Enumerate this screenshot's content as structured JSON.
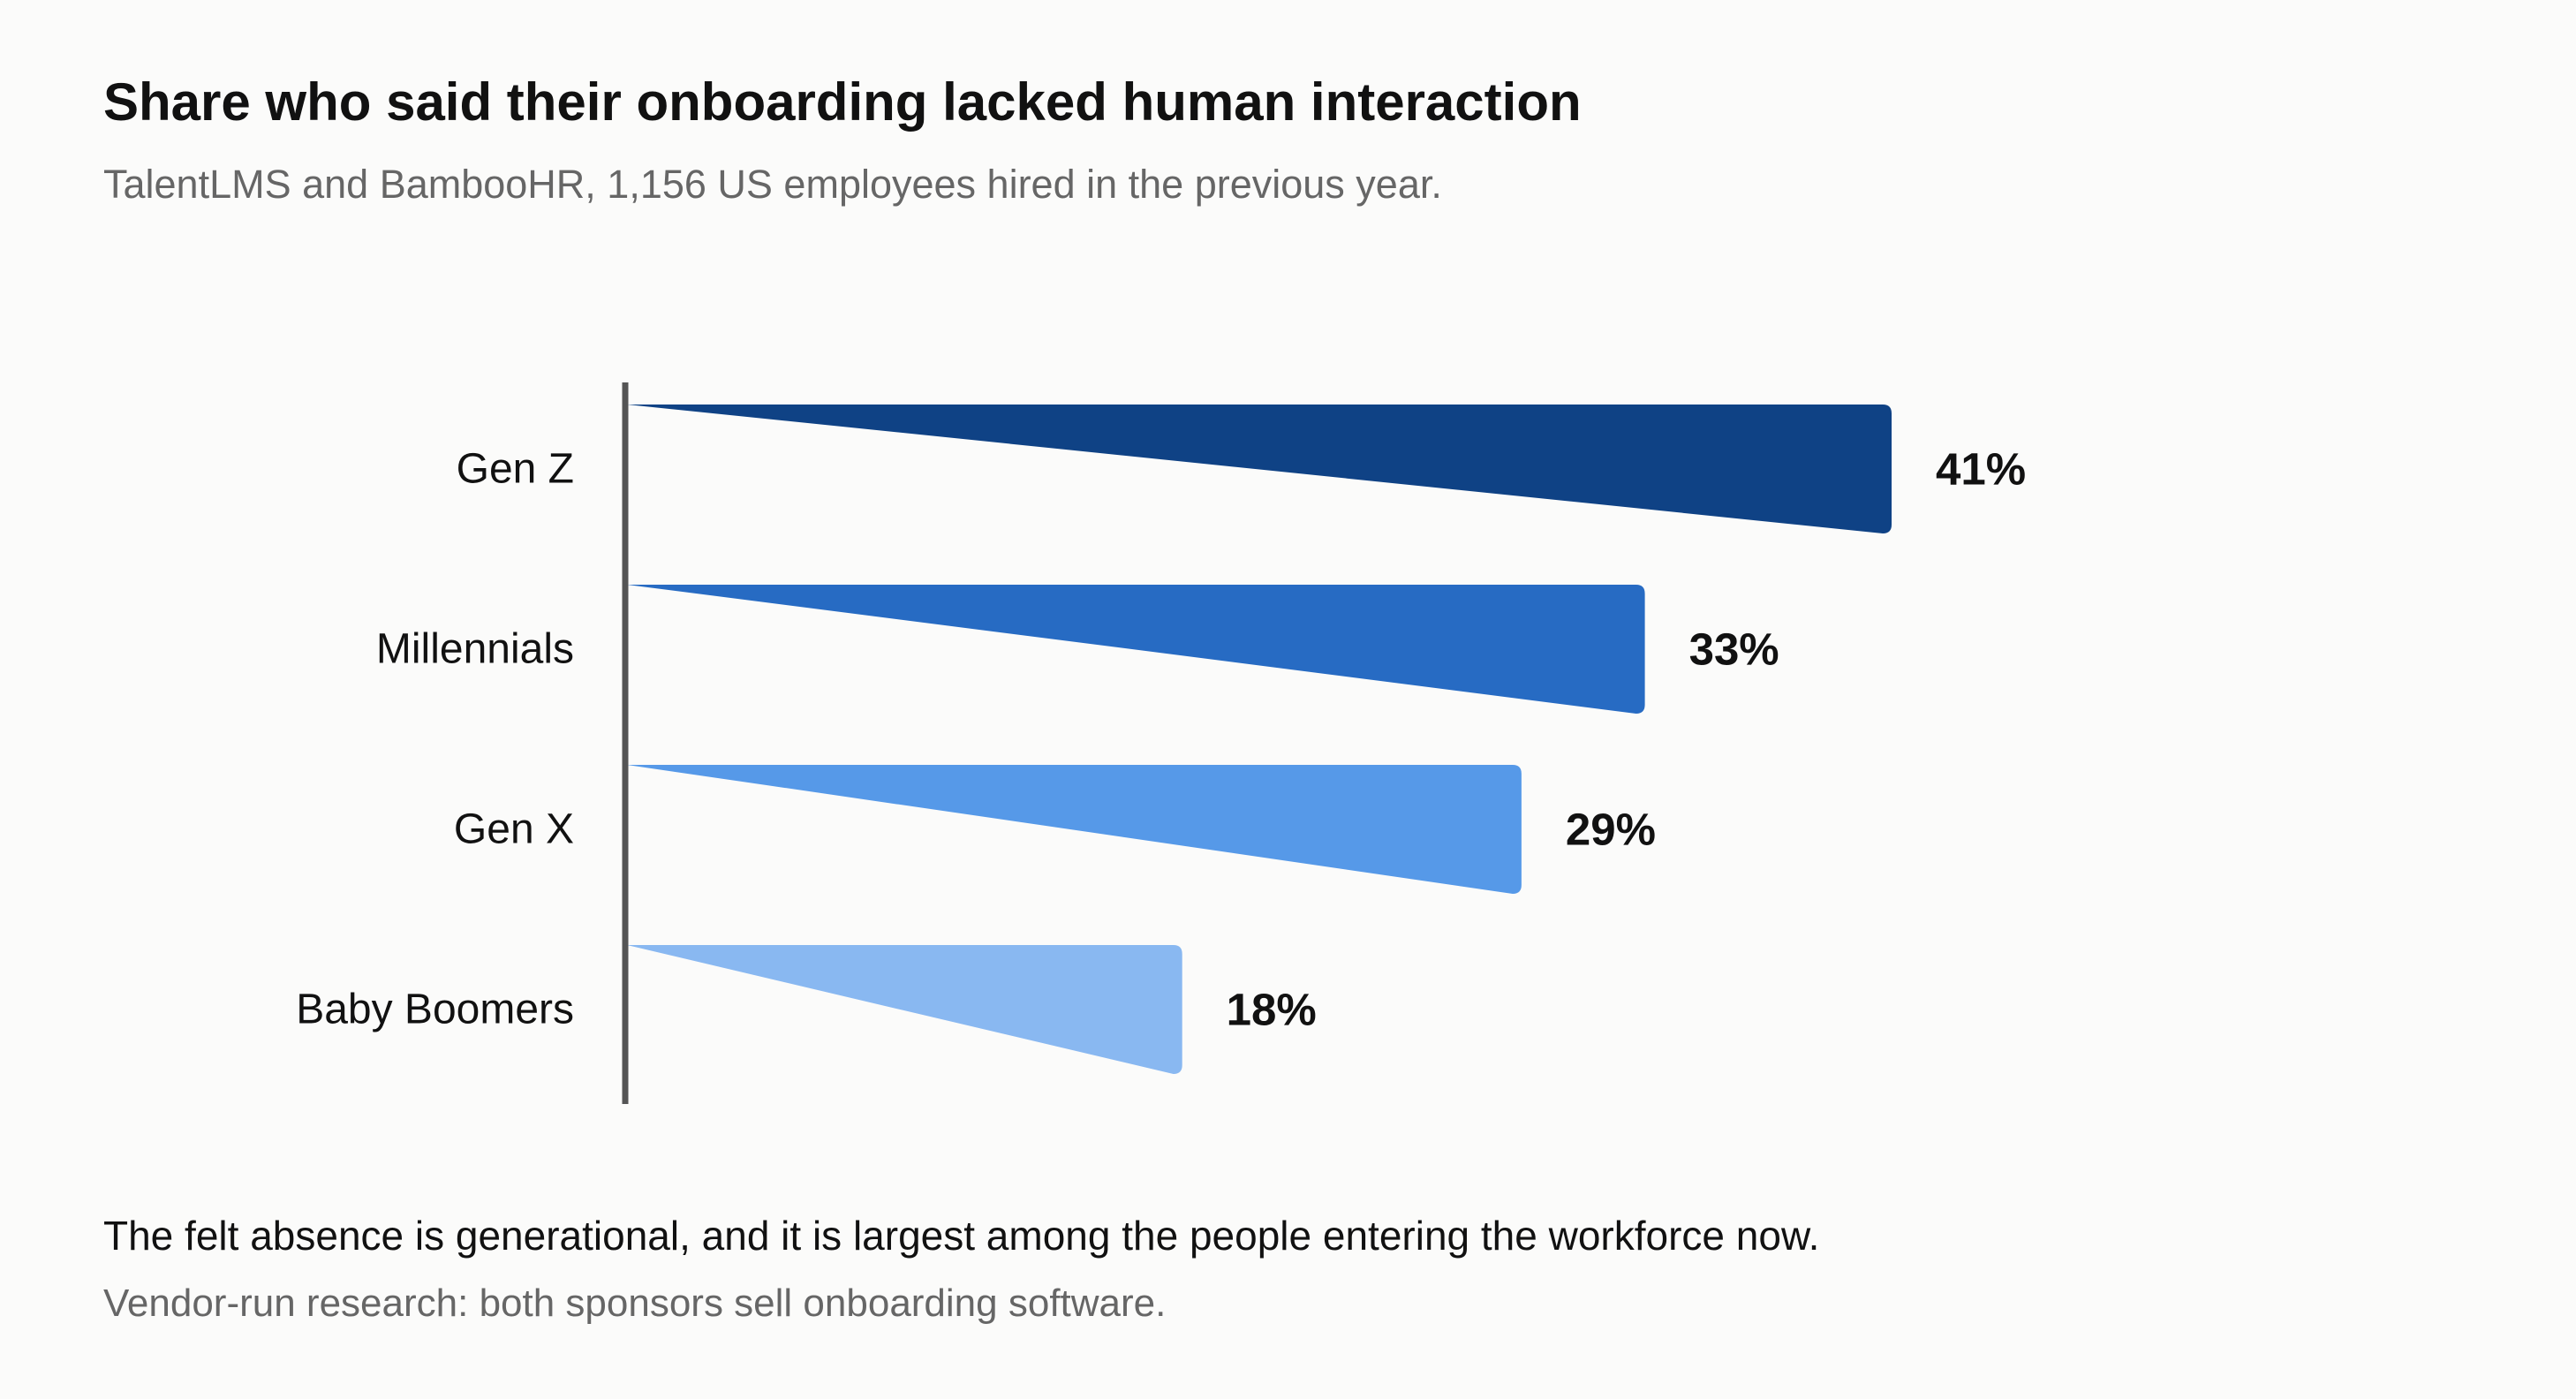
{
  "chart_data": {
    "type": "bar",
    "orientation": "horizontal",
    "title": "Share who said their onboarding lacked human interaction",
    "subtitle": "TalentLMS and BambooHR, 1,156 US employees hired in the previous year.",
    "categories": [
      "Gen Z",
      "Millennials",
      "Gen X",
      "Baby Boomers"
    ],
    "values": [
      41,
      33,
      29,
      18
    ],
    "value_labels": [
      "41%",
      "33%",
      "29%",
      "18%"
    ],
    "unit": "%",
    "xlim": [
      0,
      41
    ],
    "grid": false,
    "legend": "none",
    "colors": [
      "#0f4285",
      "#276bc3",
      "#5699e8",
      "#89b8f1"
    ],
    "axis_color": "#555555"
  },
  "notes": {
    "takeaway": "The felt absence is generational, and it is largest among the people entering the workforce now.",
    "footnote": "Vendor-run research: both sponsors sell onboarding software."
  }
}
